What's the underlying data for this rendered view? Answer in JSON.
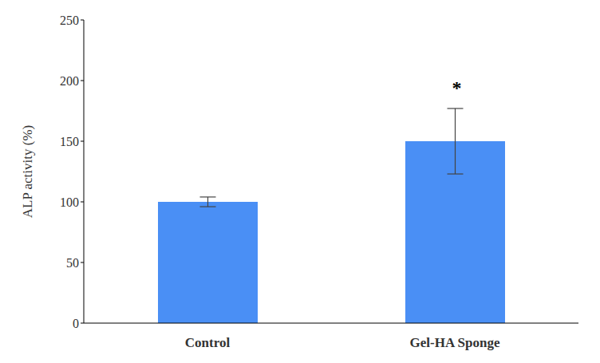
{
  "chart_data": {
    "type": "bar",
    "categories": [
      "Control",
      "Gel-HA Sponge"
    ],
    "values": [
      100,
      150
    ],
    "errors": [
      4,
      27
    ],
    "color": "#4a8ff5",
    "y_label": "ALP activity (%)",
    "ylim": [
      0,
      250
    ],
    "yticks": [
      0,
      50,
      100,
      150,
      200,
      250
    ],
    "grid": false,
    "annotations": [
      {
        "category": "Gel-HA Sponge",
        "text": "*"
      }
    ]
  }
}
